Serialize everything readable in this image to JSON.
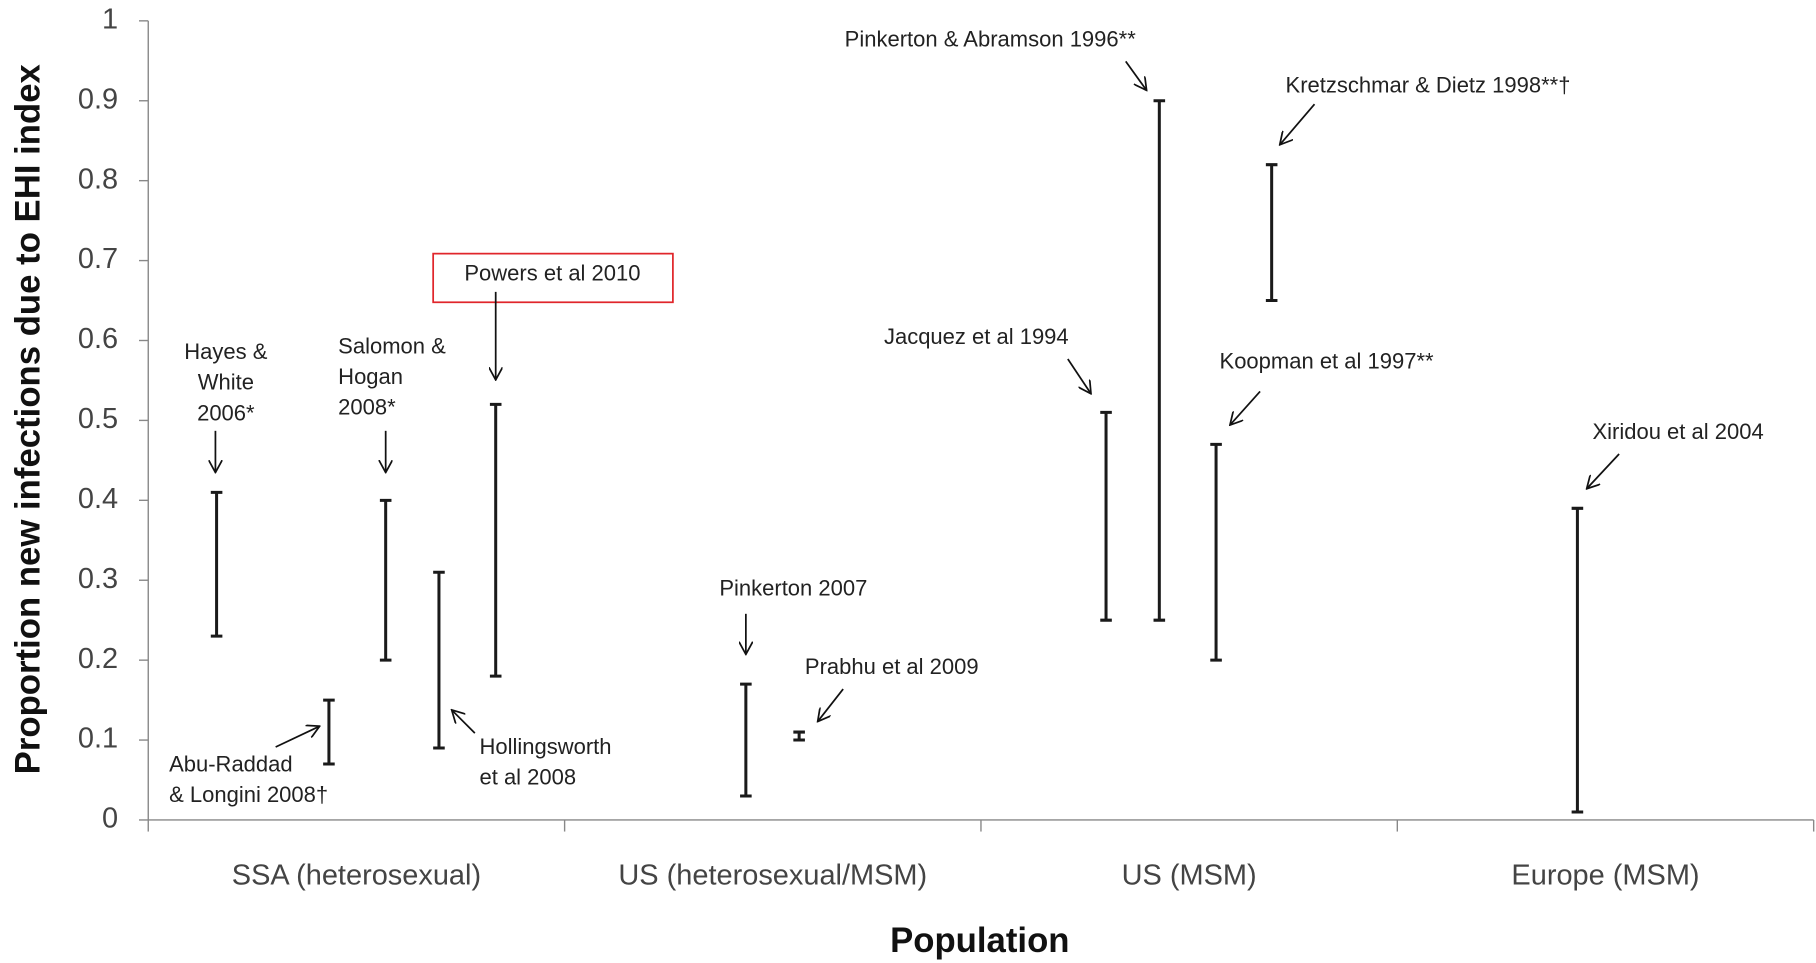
{
  "chart_data": {
    "type": "range",
    "y_label": "Proportion new infections due to EHI index",
    "x_label": "Population",
    "ylim": [
      0,
      1
    ],
    "yticks": [
      0,
      0.1,
      0.2,
      0.3,
      0.4,
      0.5,
      0.6,
      0.7,
      0.8,
      0.9,
      1
    ],
    "color": "#1a1a1a",
    "highlight_color": "#e0262b",
    "categories": [
      "SSA (heterosexual)",
      "US (heterosexual/MSM)",
      "US (MSM)",
      "Europe (MSM)"
    ],
    "groups": [
      {
        "studies": [
          {
            "label": [
              "Hayes &",
              "White",
              "2006*"
            ],
            "low": 0.23,
            "high": 0.41
          },
          {
            "label": [
              "Abu-Raddad",
              "& Longini 2008†"
            ],
            "low": 0.07,
            "high": 0.15
          },
          {
            "label": [
              "Salomon &",
              "Hogan",
              "2008*"
            ],
            "low": 0.2,
            "high": 0.4
          },
          {
            "label": [
              "Hollingsworth",
              "et al 2008"
            ],
            "low": 0.09,
            "high": 0.31
          },
          {
            "label": [
              "Powers et al 2010"
            ],
            "low": 0.18,
            "high": 0.52,
            "highlighted": true
          }
        ]
      },
      {
        "studies": [
          {
            "label": [
              "Pinkerton 2007"
            ],
            "low": 0.03,
            "high": 0.17
          },
          {
            "label": [
              "Prabhu et al 2009"
            ],
            "low": 0.1,
            "high": 0.11
          }
        ]
      },
      {
        "studies": [
          {
            "label": [
              "Jacquez et al 1994"
            ],
            "low": 0.25,
            "high": 0.51
          },
          {
            "label": [
              "Pinkerton & Abramson 1996**"
            ],
            "low": 0.25,
            "high": 0.9
          },
          {
            "label": [
              "Koopman et al 1997**"
            ],
            "low": 0.2,
            "high": 0.47
          },
          {
            "label": [
              "Kretzschmar & Dietz 1998**†"
            ],
            "low": 0.65,
            "high": 0.82
          }
        ]
      },
      {
        "studies": [
          {
            "label": [
              "Xiridou et al 2004"
            ],
            "low": 0.01,
            "high": 0.39
          }
        ]
      }
    ]
  }
}
